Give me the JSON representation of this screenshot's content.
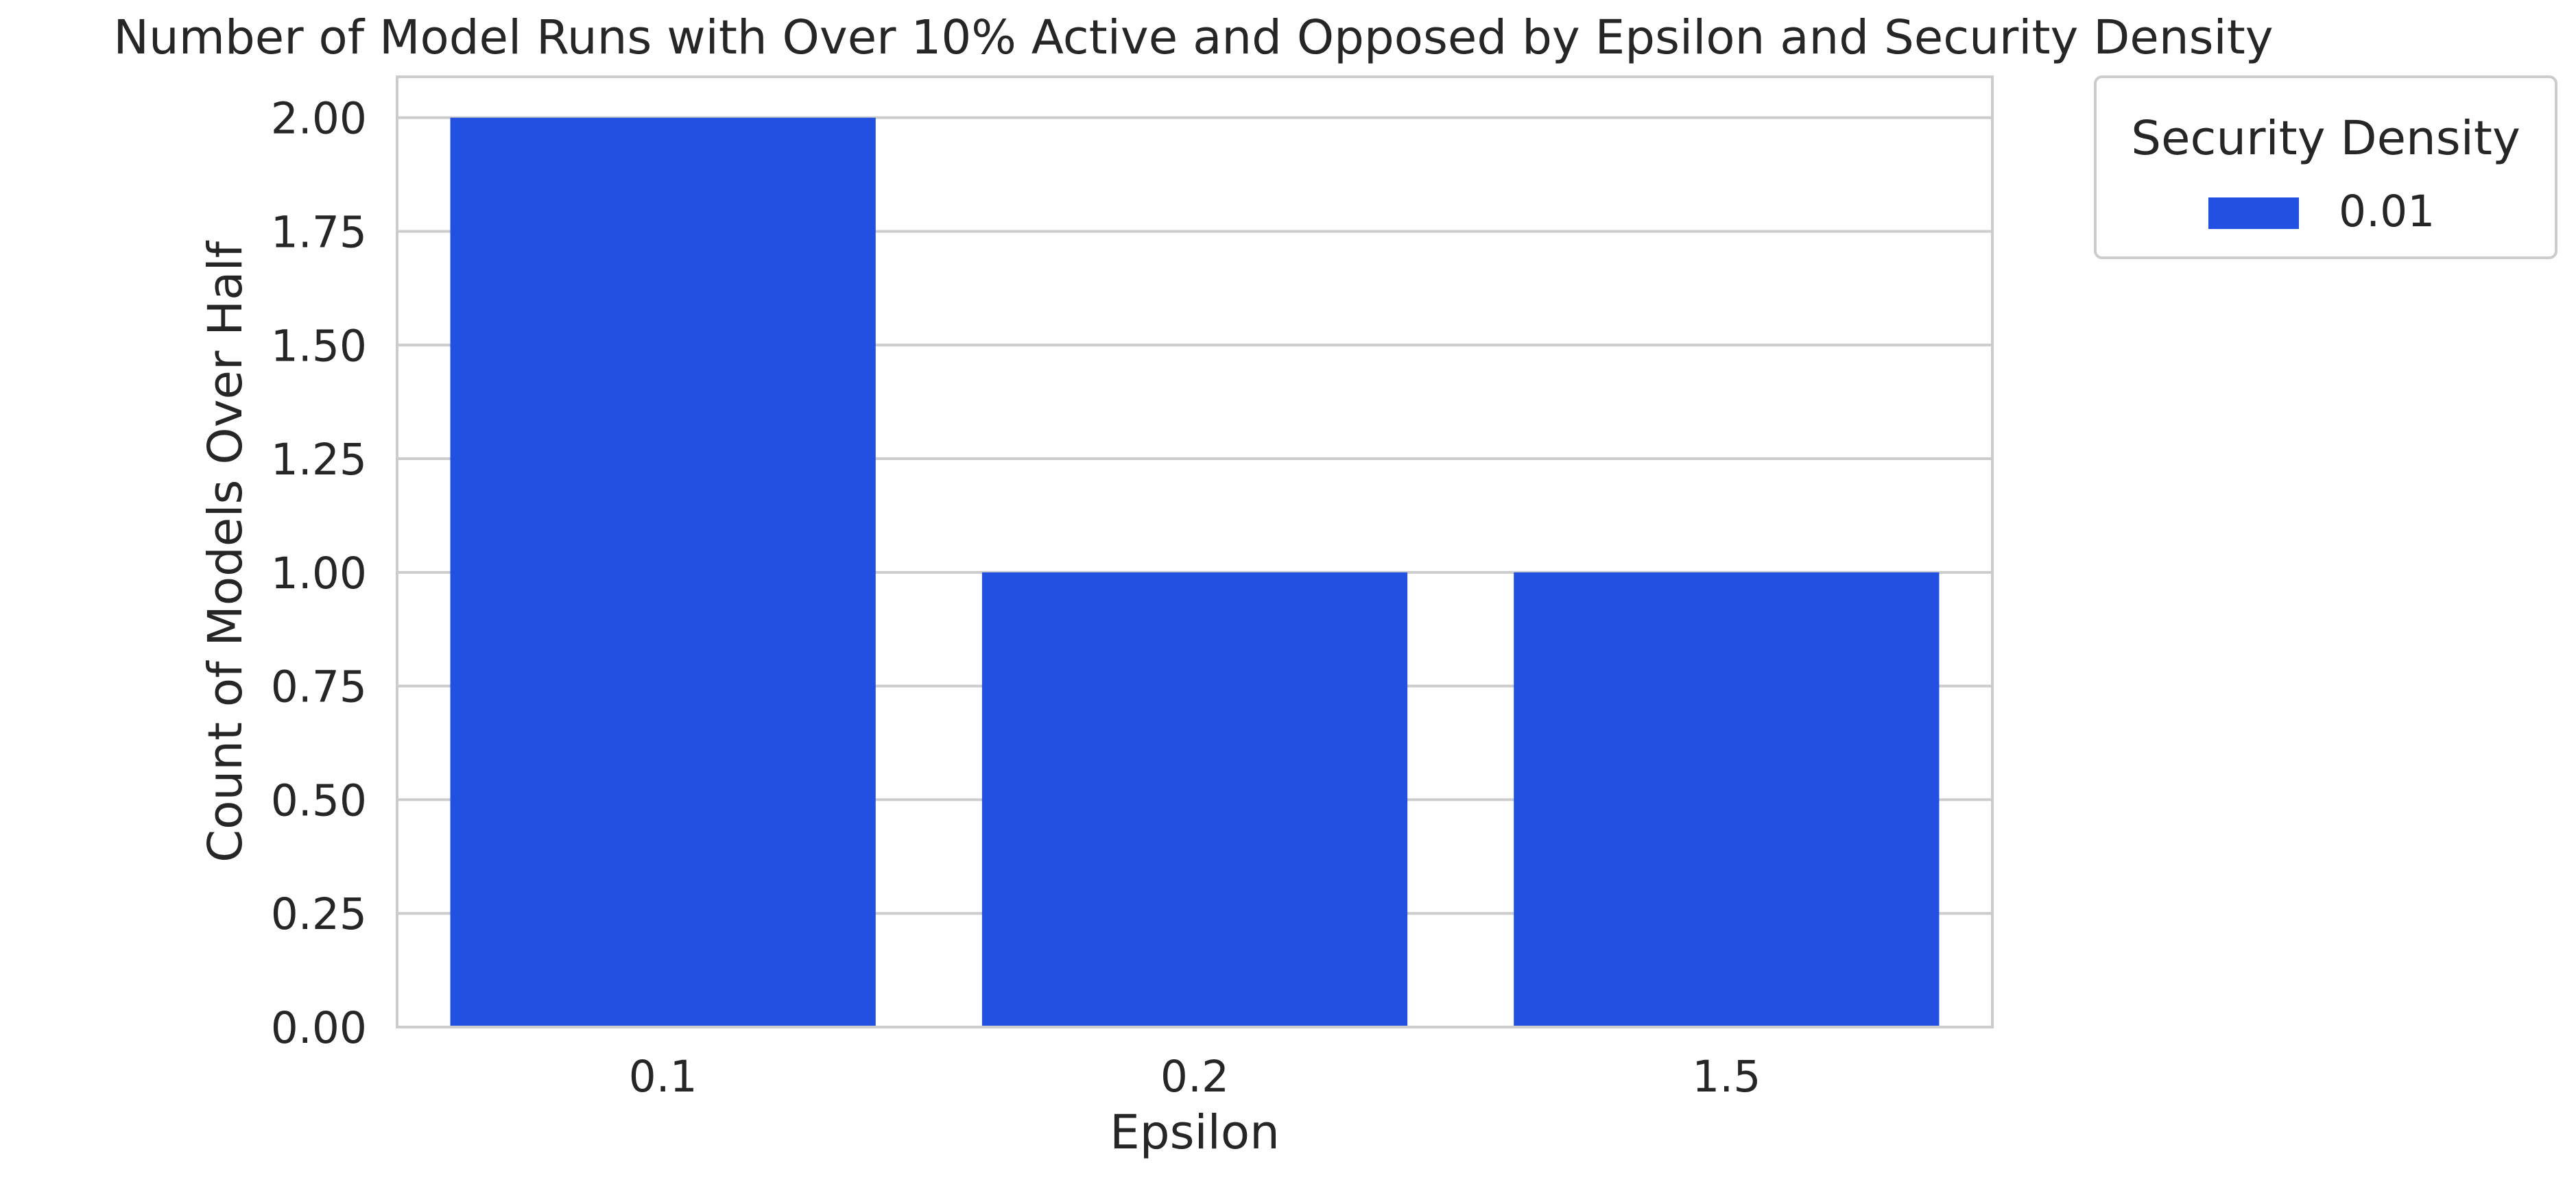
{
  "chart_data": {
    "type": "bar",
    "title": "Number of Model Runs with Over 10% Active and Opposed by Epsilon and Security Density",
    "xlabel": "Epsilon",
    "ylabel": "Count of Models Over Half",
    "categories": [
      "0.1",
      "0.2",
      "1.5"
    ],
    "series": [
      {
        "name": "0.01",
        "values": [
          2,
          1,
          1
        ],
        "color": "#2251e1"
      }
    ],
    "ylim": [
      0,
      2.09
    ],
    "yticks": [
      "0.00",
      "0.25",
      "0.50",
      "0.75",
      "1.00",
      "1.25",
      "1.50",
      "1.75",
      "2.00"
    ],
    "grid": "horizontal",
    "legend": {
      "title": "Security Density",
      "placement": "outside-top-right"
    }
  }
}
